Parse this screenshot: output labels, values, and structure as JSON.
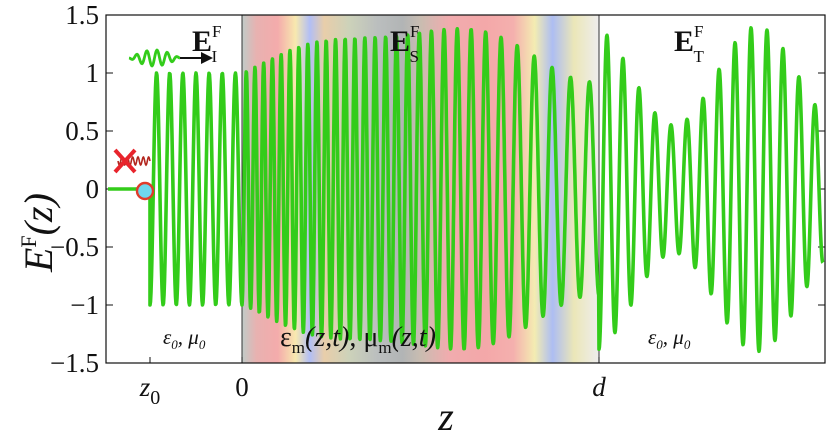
{
  "chart_data": {
    "type": "line",
    "ylabel": {
      "symbol": "E",
      "sup": "F",
      "arg": "(z)"
    },
    "xlabel": "z",
    "ylim": [
      -1.5,
      1.5
    ],
    "yticks": [
      "1.5",
      "1",
      "0.5",
      "0",
      "-0.5",
      "-1",
      "-1.5"
    ],
    "ytick_values": [
      1.5,
      1,
      0.5,
      0,
      -0.5,
      -1,
      -1.5
    ],
    "xticks": [
      {
        "label": "z",
        "sub": "0",
        "italic": true
      },
      {
        "label": "0",
        "italic": false
      },
      {
        "label": "d",
        "italic": true
      }
    ],
    "regions": [
      {
        "name": "E",
        "sub": "I",
        "sup": "F",
        "medium": "ε₀, μ₀"
      },
      {
        "name": "E",
        "sub": "S",
        "sup": "F",
        "medium": "εm(z,t), μm(z,t)"
      },
      {
        "name": "E",
        "sub": "T",
        "sup": "F",
        "medium": "ε₀, μ₀"
      }
    ],
    "medium_labels": {
      "incident": {
        "eps": "ε",
        "eps_sub": "0",
        "mu": "μ",
        "mu_sub": "0"
      },
      "slab": {
        "eps": "ε",
        "eps_sub": "m",
        "mu": "μ",
        "mu_sub": "m",
        "args": "(z,t)"
      },
      "transmitted": {
        "eps": "ε",
        "eps_sub": "0",
        "mu": "μ",
        "mu_sub": "0"
      }
    },
    "series": [
      {
        "color": "#33cc1a",
        "segments": [
          {
            "region": "incident",
            "amplitude": 1.0,
            "periods": 7,
            "level_before_z0": 0
          },
          {
            "region": "slab",
            "amplitude_range": [
              1.0,
              1.45
            ],
            "periods": 30
          },
          {
            "region": "transmitted",
            "amplitude_range": [
              0.55,
              1.4
            ],
            "periods": 14
          }
        ]
      }
    ],
    "colors": {
      "wave": "#33cc1a",
      "reflected_cross": "#e8242c",
      "reflected_wave": "#b3261e",
      "marker_fill": "#6fd6ee",
      "marker_ring": "#e03b2b"
    }
  }
}
